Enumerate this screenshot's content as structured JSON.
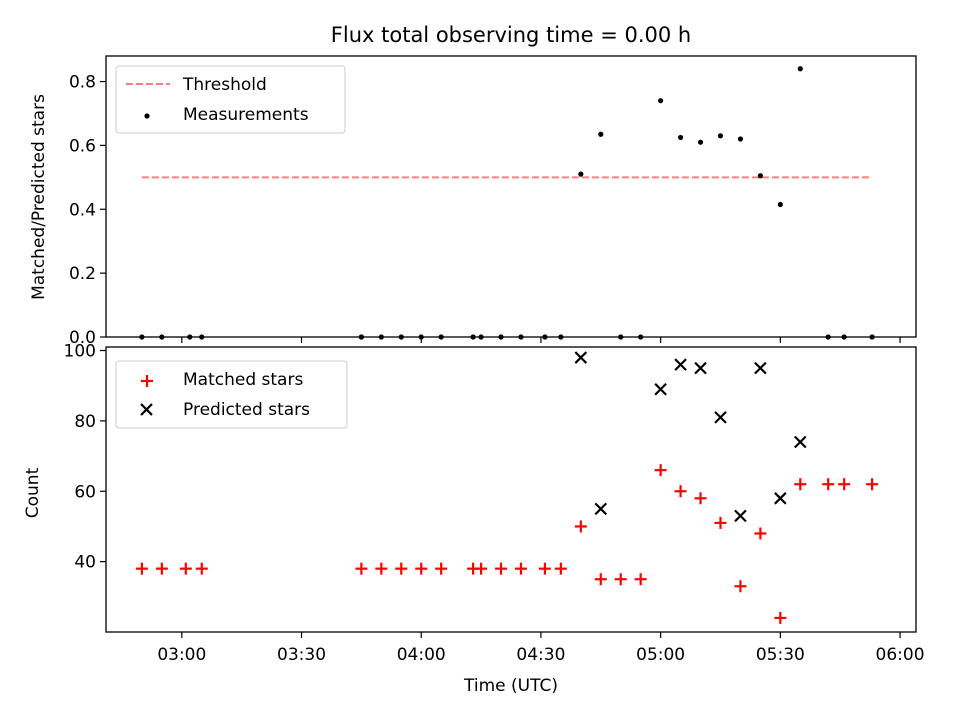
{
  "chart_data": [
    {
      "type": "scatter",
      "title": "Flux total observing time = 0.00 h",
      "xlabel": "",
      "ylabel": "Matched/Predicted stars",
      "xlim": [
        "02:41",
        "06:04"
      ],
      "ylim": [
        0,
        0.88
      ],
      "y_ticks": [
        0.0,
        0.2,
        0.4,
        0.6,
        0.8
      ],
      "x_ticks": [
        "03:00",
        "03:30",
        "04:00",
        "04:30",
        "05:00",
        "05:30",
        "06:00"
      ],
      "x_tick_labels_shown": false,
      "legend_position": "top-left",
      "grid": false,
      "series": [
        {
          "name": "Threshold",
          "kind": "dashed-line",
          "color": "#ff7f7f",
          "points": [
            [
              "02:50",
              0.5
            ],
            [
              "05:53",
              0.5
            ]
          ]
        },
        {
          "name": "Measurements",
          "kind": "dots",
          "color": "#000000",
          "points": [
            [
              "02:50",
              0.0
            ],
            [
              "02:55",
              0.0
            ],
            [
              "03:02",
              0.0
            ],
            [
              "03:05",
              0.0
            ],
            [
              "03:45",
              0.0
            ],
            [
              "03:45",
              0.0
            ],
            [
              "03:50",
              0.0
            ],
            [
              "03:55",
              0.0
            ],
            [
              "04:00",
              0.0
            ],
            [
              "04:05",
              0.0
            ],
            [
              "04:13",
              0.0
            ],
            [
              "04:15",
              0.0
            ],
            [
              "04:20",
              0.0
            ],
            [
              "04:25",
              0.0
            ],
            [
              "04:31",
              0.0
            ],
            [
              "04:35",
              0.0
            ],
            [
              "04:40",
              0.51
            ],
            [
              "04:45",
              0.635
            ],
            [
              "04:50",
              0.0
            ],
            [
              "04:55",
              0.0
            ],
            [
              "05:00",
              0.74
            ],
            [
              "05:05",
              0.625
            ],
            [
              "05:10",
              0.61
            ],
            [
              "05:15",
              0.63
            ],
            [
              "05:20",
              0.62
            ],
            [
              "05:25",
              0.505
            ],
            [
              "05:30",
              0.415
            ],
            [
              "05:35",
              0.84
            ],
            [
              "05:42",
              0.0
            ],
            [
              "05:46",
              0.0
            ],
            [
              "05:53",
              0.0
            ]
          ]
        }
      ]
    },
    {
      "type": "scatter",
      "title": "",
      "xlabel": "Time (UTC)",
      "ylabel": "Count",
      "xlim": [
        "02:41",
        "06:04"
      ],
      "ylim": [
        20,
        101
      ],
      "y_ticks": [
        40,
        60,
        80,
        100
      ],
      "x_ticks": [
        "03:00",
        "03:30",
        "04:00",
        "04:30",
        "05:00",
        "05:30",
        "06:00"
      ],
      "x_tick_labels_shown": true,
      "legend_position": "top-left",
      "grid": false,
      "series": [
        {
          "name": "Matched stars",
          "marker": "plus",
          "color": "#ff0000",
          "points": [
            [
              "02:50",
              38
            ],
            [
              "02:55",
              38
            ],
            [
              "03:01",
              38
            ],
            [
              "03:05",
              38
            ],
            [
              "03:45",
              38
            ],
            [
              "03:50",
              38
            ],
            [
              "03:55",
              38
            ],
            [
              "04:00",
              38
            ],
            [
              "04:05",
              38
            ],
            [
              "04:13",
              38
            ],
            [
              "04:15",
              38
            ],
            [
              "04:20",
              38
            ],
            [
              "04:25",
              38
            ],
            [
              "04:31",
              38
            ],
            [
              "04:35",
              38
            ],
            [
              "04:40",
              50
            ],
            [
              "04:45",
              35
            ],
            [
              "04:50",
              35
            ],
            [
              "04:55",
              35
            ],
            [
              "05:00",
              66
            ],
            [
              "05:05",
              60
            ],
            [
              "05:10",
              58
            ],
            [
              "05:15",
              51
            ],
            [
              "05:20",
              33
            ],
            [
              "05:25",
              48
            ],
            [
              "05:30",
              24
            ],
            [
              "05:35",
              62
            ],
            [
              "05:42",
              62
            ],
            [
              "05:46",
              62
            ],
            [
              "05:53",
              62
            ]
          ]
        },
        {
          "name": "Predicted stars",
          "marker": "x",
          "color": "#000000",
          "points": [
            [
              "04:40",
              98
            ],
            [
              "04:45",
              55
            ],
            [
              "05:00",
              89
            ],
            [
              "05:05",
              96
            ],
            [
              "05:10",
              95
            ],
            [
              "05:15",
              81
            ],
            [
              "05:20",
              53
            ],
            [
              "05:25",
              95
            ],
            [
              "05:30",
              58
            ],
            [
              "05:35",
              74
            ]
          ]
        }
      ]
    }
  ]
}
